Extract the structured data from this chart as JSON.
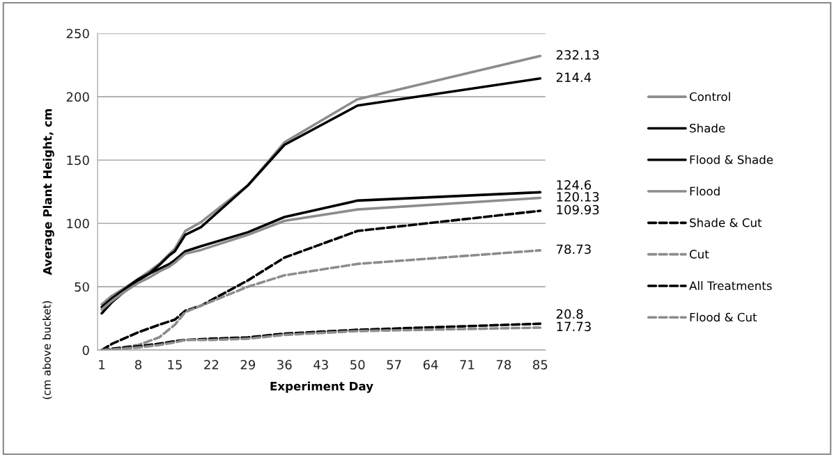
{
  "chart_data": {
    "type": "line",
    "xlabel": "Experiment Day",
    "ylabel": "Average Plant Height, cm",
    "annotations": [
      "(cm above bucket)"
    ],
    "xlim": [
      0.2,
      86
    ],
    "xticks": [
      1,
      8,
      15,
      22,
      29,
      36,
      43,
      50,
      57,
      64,
      71,
      78,
      85
    ],
    "ylim": [
      0,
      250
    ],
    "yticks": [
      0,
      50,
      100,
      150,
      200,
      250
    ],
    "grid": "y",
    "legend": "right",
    "marker": "none",
    "series": [
      {
        "name": "Control",
        "color": "#8c8c8c",
        "line_style": "solid",
        "x": [
          1,
          3,
          5,
          8,
          10,
          12,
          14,
          15,
          17,
          20,
          29,
          36,
          50,
          85
        ],
        "values": [
          36,
          43,
          48,
          56,
          62,
          68,
          76,
          80,
          94,
          101,
          130,
          164,
          198,
          232.13
        ],
        "value_labels": [
          null,
          null,
          null,
          null,
          null,
          null,
          null,
          null,
          null,
          null,
          null,
          null,
          null,
          "232.13"
        ]
      },
      {
        "name": "Shade",
        "color": "#000000",
        "line_style": "solid",
        "x": [
          1,
          3,
          5,
          8,
          10,
          12,
          14,
          15,
          17,
          20,
          29,
          36,
          50,
          85
        ],
        "values": [
          29,
          38,
          45,
          55,
          60,
          67,
          75,
          78,
          91,
          97,
          130,
          162,
          193,
          214.4
        ],
        "value_labels": [
          null,
          null,
          null,
          null,
          null,
          null,
          null,
          null,
          null,
          null,
          null,
          null,
          null,
          "214.4"
        ]
      },
      {
        "name": "Flood & Shade",
        "color": "#000000",
        "line_style": "solid",
        "x": [
          1,
          3,
          5,
          8,
          10,
          12,
          14,
          15,
          17,
          20,
          29,
          36,
          50,
          85
        ],
        "values": [
          34,
          41,
          47,
          56,
          60,
          64,
          68,
          71,
          78,
          82,
          93,
          105,
          118,
          124.6
        ],
        "value_labels": [
          null,
          null,
          null,
          null,
          null,
          null,
          null,
          null,
          null,
          null,
          null,
          null,
          null,
          "124.6"
        ]
      },
      {
        "name": "Flood",
        "color": "#8c8c8c",
        "line_style": "solid",
        "x": [
          1,
          3,
          5,
          8,
          10,
          12,
          14,
          15,
          17,
          20,
          29,
          36,
          50,
          85
        ],
        "values": [
          32,
          39,
          45,
          53,
          57,
          62,
          66,
          69,
          76,
          79,
          91,
          102,
          111,
          120.13
        ],
        "value_labels": [
          null,
          null,
          null,
          null,
          null,
          null,
          null,
          null,
          null,
          null,
          null,
          null,
          null,
          "120.13"
        ]
      },
      {
        "name": "Shade & Cut",
        "color": "#000000",
        "line_style": "dashed",
        "x": [
          1,
          3,
          8,
          12,
          15,
          17,
          20,
          29,
          36,
          50,
          85
        ],
        "values": [
          0,
          5,
          14,
          20,
          24,
          31,
          35,
          55,
          73,
          94,
          109.93
        ],
        "value_labels": [
          null,
          null,
          null,
          null,
          null,
          null,
          null,
          null,
          null,
          null,
          "109.93"
        ]
      },
      {
        "name": "Cut",
        "color": "#8c8c8c",
        "line_style": "dashed",
        "x": [
          1,
          3,
          8,
          12,
          15,
          17,
          20,
          29,
          36,
          50,
          85
        ],
        "values": [
          0,
          1,
          4,
          10,
          20,
          30,
          35,
          50,
          59,
          68,
          78.73
        ],
        "value_labels": [
          null,
          null,
          null,
          null,
          null,
          null,
          null,
          null,
          null,
          null,
          "78.73"
        ]
      },
      {
        "name": "All Treatments",
        "color": "#000000",
        "line_style": "dashed",
        "x": [
          1,
          3,
          8,
          12,
          15,
          17,
          22,
          29,
          36,
          50,
          85
        ],
        "values": [
          0,
          1,
          3,
          5,
          7,
          8,
          9,
          10,
          13,
          16,
          20.8
        ],
        "value_labels": [
          null,
          null,
          null,
          null,
          null,
          null,
          null,
          null,
          null,
          null,
          "20.8"
        ]
      },
      {
        "name": "Flood & Cut",
        "color": "#8c8c8c",
        "line_style": "dashed",
        "x": [
          1,
          3,
          8,
          12,
          15,
          17,
          22,
          29,
          36,
          50,
          85
        ],
        "values": [
          0,
          0.5,
          2,
          4,
          6,
          8,
          8,
          9,
          12,
          15,
          17.73
        ],
        "value_labels": [
          null,
          null,
          null,
          null,
          null,
          null,
          null,
          null,
          null,
          null,
          "17.73"
        ]
      }
    ]
  }
}
